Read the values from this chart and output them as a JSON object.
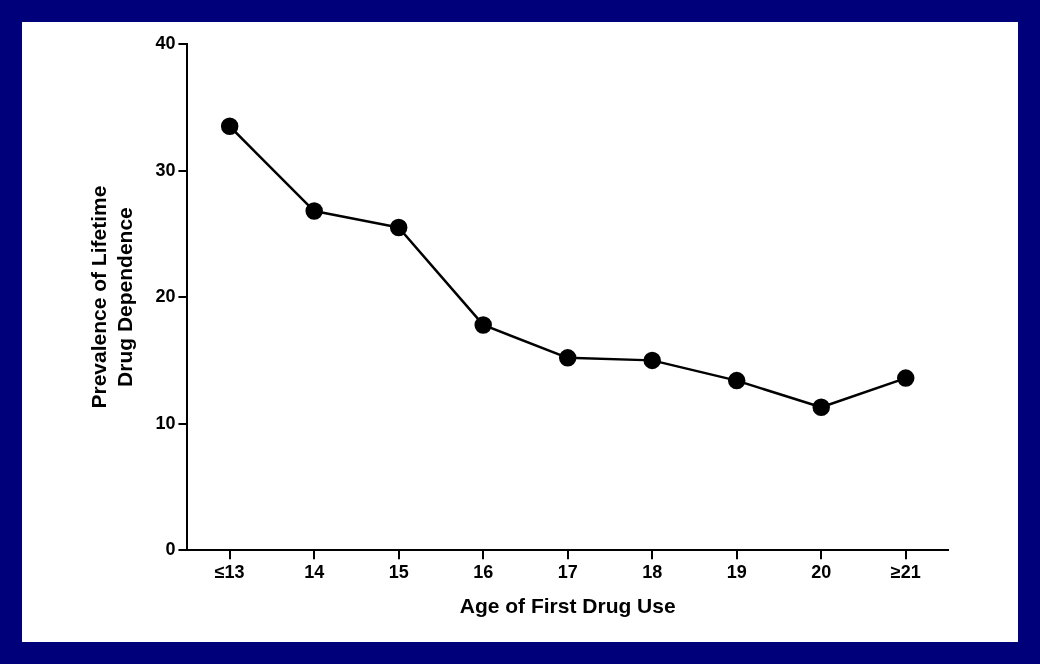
{
  "chart_data": {
    "type": "line",
    "xlabel": "Age of First Drug Use",
    "ylabel": "Prevalence of Lifetime\nDrug Dependence",
    "categories": [
      "≤13",
      "14",
      "15",
      "16",
      "17",
      "18",
      "19",
      "20",
      "≥21"
    ],
    "series": [
      {
        "color": "#000000",
        "values": [
          33.5,
          26.8,
          25.5,
          17.8,
          15.2,
          15.0,
          13.4,
          11.3,
          13.6
        ]
      }
    ],
    "ylim": [
      0,
      40
    ],
    "yticks": [
      0,
      10,
      20,
      30,
      40
    ],
    "marker": "circle",
    "line_style": "solid"
  }
}
